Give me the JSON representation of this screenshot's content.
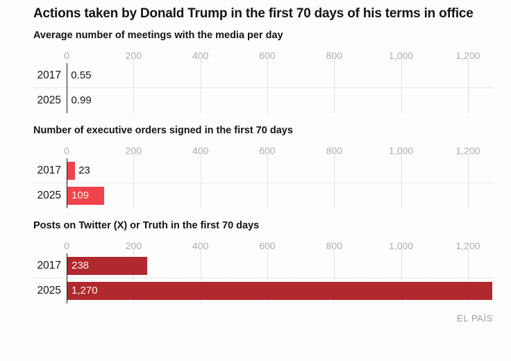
{
  "title": "Actions taken by Donald Trump in the first 70 days of his terms in office",
  "source_credit": "EL PAÍS",
  "colors": {
    "bar_bright_red": "#f0434b",
    "bar_dark_red": "#b0292e",
    "axis_text": "#b1adaa",
    "gridline": "#e5e2de",
    "separator_dotted": "#d8d3cf",
    "text": "#141414",
    "bar_label_light": "#f8f1ea",
    "credit_gray": "#99a0a6"
  },
  "chart_data": [
    {
      "type": "bar",
      "orientation": "horizontal",
      "title": "Average number of meetings with the media per day",
      "categories": [
        "2017",
        "2025"
      ],
      "values": [
        0.55,
        0.99
      ],
      "value_labels": [
        "0.55",
        "0.99"
      ],
      "bar_color": "#f0434b",
      "xlim": [
        0,
        1275
      ],
      "ticks": [
        0,
        200,
        400,
        600,
        800,
        1000,
        1200
      ],
      "tick_labels": [
        "0",
        "200",
        "400",
        "600",
        "800",
        "1,000",
        "1,200"
      ],
      "grid": true,
      "legend": false
    },
    {
      "type": "bar",
      "orientation": "horizontal",
      "title": "Number of executive orders signed in the first 70 days",
      "categories": [
        "2017",
        "2025"
      ],
      "values": [
        23,
        109
      ],
      "value_labels": [
        "23",
        "109"
      ],
      "bar_color": "#f0434b",
      "xlim": [
        0,
        1275
      ],
      "ticks": [
        0,
        200,
        400,
        600,
        800,
        1000,
        1200
      ],
      "tick_labels": [
        "0",
        "200",
        "400",
        "600",
        "800",
        "1,000",
        "1,200"
      ],
      "grid": true,
      "legend": false
    },
    {
      "type": "bar",
      "orientation": "horizontal",
      "title": "Posts on Twitter (X) or Truth in the first 70 days",
      "categories": [
        "2017",
        "2025"
      ],
      "values": [
        238,
        1270
      ],
      "value_labels": [
        "238",
        "1,270"
      ],
      "bar_color": "#b0292e",
      "xlim": [
        0,
        1275
      ],
      "ticks": [
        0,
        200,
        400,
        600,
        800,
        1000,
        1200
      ],
      "tick_labels": [
        "0",
        "200",
        "400",
        "600",
        "800",
        "1,000",
        "1,200"
      ],
      "grid": true,
      "legend": false
    }
  ]
}
